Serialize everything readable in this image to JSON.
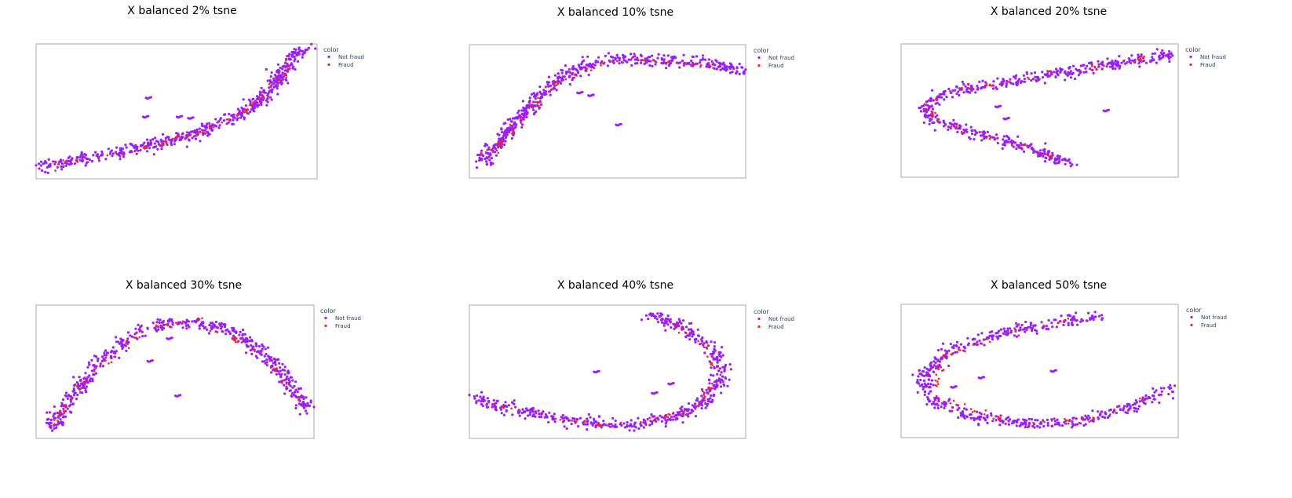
{
  "colors": {
    "not_fraud": "#9b1dff",
    "fraud": "#ff1f1f",
    "frame": "#a8a8a8",
    "legend_text": "#2a3f5f"
  },
  "chart_data": [
    {
      "type": "scatter",
      "title": "X balanced 2% tsne",
      "legend": {
        "title": "color",
        "placement": "right",
        "entries": [
          "Not fraud",
          "Fraud"
        ]
      },
      "xlim": [
        0,
        100
      ],
      "ylim": [
        0,
        100
      ],
      "grid": false,
      "series": [
        {
          "name": "Not fraud",
          "curve": [
            [
              2,
              9
            ],
            [
              15,
              14
            ],
            [
              30,
              20
            ],
            [
              45,
              27
            ],
            [
              60,
              36
            ],
            [
              72,
              47
            ],
            [
              82,
              62
            ],
            [
              88,
              80
            ],
            [
              92,
              93
            ],
            [
              97,
              96
            ]
          ],
          "clusters": [
            [
              40,
              60
            ],
            [
              55,
              45
            ],
            [
              51,
              46
            ],
            [
              39,
              46
            ]
          ]
        },
        {
          "name": "Fraud",
          "curve": [
            [
              5,
              9
            ],
            [
              20,
              15
            ],
            [
              38,
              23
            ],
            [
              55,
              32
            ],
            [
              68,
              43
            ],
            [
              78,
              55
            ],
            [
              85,
              70
            ],
            [
              91,
              88
            ]
          ]
        }
      ]
    },
    {
      "type": "scatter",
      "title": "X balanced 10% tsne",
      "legend": {
        "title": "color",
        "placement": "right",
        "entries": [
          "Not fraud",
          "Fraud"
        ]
      },
      "xlim": [
        0,
        100
      ],
      "ylim": [
        0,
        100
      ],
      "grid": false,
      "series": [
        {
          "name": "Not fraud",
          "curve": [
            [
              4,
              10
            ],
            [
              10,
              25
            ],
            [
              18,
              45
            ],
            [
              27,
              65
            ],
            [
              38,
              82
            ],
            [
              52,
              90
            ],
            [
              66,
              89
            ],
            [
              80,
              87
            ],
            [
              92,
              84
            ],
            [
              99,
              80
            ]
          ],
          "clusters": [
            [
              54,
              40
            ],
            [
              40,
              64
            ],
            [
              44,
              62
            ]
          ]
        },
        {
          "name": "Fraud",
          "curve": [
            [
              6,
              15
            ],
            [
              15,
              35
            ],
            [
              30,
              70
            ],
            [
              50,
              88
            ],
            [
              70,
              88
            ],
            [
              90,
              84
            ]
          ]
        }
      ]
    },
    {
      "type": "scatter",
      "title": "X balanced 20% tsne",
      "legend": {
        "title": "color",
        "placement": "right",
        "entries": [
          "Not fraud",
          "Fraud"
        ]
      },
      "xlim": [
        0,
        100
      ],
      "ylim": [
        0,
        100
      ],
      "grid": false,
      "series": [
        {
          "name": "Not fraud",
          "curve": [
            [
              98,
              92
            ],
            [
              80,
              86
            ],
            [
              60,
              79
            ],
            [
              40,
              72
            ],
            [
              22,
              66
            ],
            [
              10,
              58
            ],
            [
              8,
              50
            ],
            [
              12,
              42
            ],
            [
              25,
              35
            ],
            [
              42,
              25
            ],
            [
              55,
              15
            ],
            [
              62,
              10
            ]
          ],
          "clusters": [
            [
              74,
              50
            ],
            [
              35,
              53
            ],
            [
              38,
              44
            ]
          ]
        },
        {
          "name": "Fraud",
          "curve": [
            [
              90,
              90
            ],
            [
              65,
              80
            ],
            [
              40,
              72
            ],
            [
              18,
              64
            ],
            [
              9,
              52
            ],
            [
              15,
              40
            ],
            [
              35,
              28
            ],
            [
              55,
              14
            ]
          ]
        }
      ]
    },
    {
      "type": "scatter",
      "title": "X balanced 30% tsne",
      "legend": {
        "title": "color",
        "placement": "right",
        "entries": [
          "Not fraud",
          "Fraud"
        ]
      },
      "xlim": [
        0,
        100
      ],
      "ylim": [
        0,
        100
      ],
      "grid": false,
      "series": [
        {
          "name": "Not fraud",
          "curve": [
            [
              5,
              8
            ],
            [
              12,
              30
            ],
            [
              22,
              55
            ],
            [
              35,
              78
            ],
            [
              50,
              88
            ],
            [
              65,
              85
            ],
            [
              78,
              72
            ],
            [
              88,
              50
            ],
            [
              95,
              30
            ],
            [
              98,
              20
            ]
          ],
          "clusters": [
            [
              41,
              58
            ],
            [
              51,
              32
            ],
            [
              48,
              75
            ]
          ]
        },
        {
          "name": "Fraud",
          "curve": [
            [
              6,
              10
            ],
            [
              18,
              45
            ],
            [
              40,
              84
            ],
            [
              60,
              87
            ],
            [
              82,
              62
            ],
            [
              96,
              25
            ]
          ]
        }
      ]
    },
    {
      "type": "scatter",
      "title": "X balanced 40% tsne",
      "legend": {
        "title": "color",
        "placement": "right",
        "entries": [
          "Not fraud",
          "Fraud"
        ]
      },
      "xlim": [
        0,
        100
      ],
      "ylim": [
        0,
        100
      ],
      "grid": false,
      "series": [
        {
          "name": "Not fraud",
          "curve": [
            [
              2,
              30
            ],
            [
              20,
              20
            ],
            [
              40,
              12
            ],
            [
              58,
              10
            ],
            [
              75,
              16
            ],
            [
              86,
              30
            ],
            [
              92,
              48
            ],
            [
              88,
              68
            ],
            [
              78,
              82
            ],
            [
              65,
              92
            ]
          ],
          "clusters": [
            [
              46,
              50
            ],
            [
              73,
              41
            ],
            [
              67,
              34
            ]
          ]
        },
        {
          "name": "Fraud",
          "curve": [
            [
              5,
              28
            ],
            [
              30,
              15
            ],
            [
              55,
              10
            ],
            [
              80,
              20
            ],
            [
              91,
              45
            ],
            [
              85,
              72
            ],
            [
              70,
              90
            ]
          ]
        }
      ]
    },
    {
      "type": "scatter",
      "title": "X balanced 50% tsne",
      "legend": {
        "title": "color",
        "placement": "right",
        "entries": [
          "Not fraud",
          "Fraud"
        ]
      },
      "xlim": [
        0,
        100
      ],
      "ylim": [
        0,
        100
      ],
      "grid": false,
      "series": [
        {
          "name": "Not fraud",
          "curve": [
            [
              72,
              91
            ],
            [
              55,
              86
            ],
            [
              35,
              78
            ],
            [
              18,
              66
            ],
            [
              8,
              48
            ],
            [
              10,
              30
            ],
            [
              25,
              16
            ],
            [
              45,
              10
            ],
            [
              65,
              12
            ],
            [
              82,
              22
            ],
            [
              97,
              36
            ]
          ],
          "clusters": [
            [
              55,
              50
            ],
            [
              29,
              45
            ],
            [
              19,
              38
            ]
          ]
        },
        {
          "name": "Fraud",
          "curve": [
            [
              66,
              90
            ],
            [
              40,
              80
            ],
            [
              14,
              60
            ],
            [
              12,
              30
            ],
            [
              40,
              11
            ],
            [
              70,
              14
            ],
            [
              92,
              33
            ]
          ]
        }
      ]
    }
  ]
}
